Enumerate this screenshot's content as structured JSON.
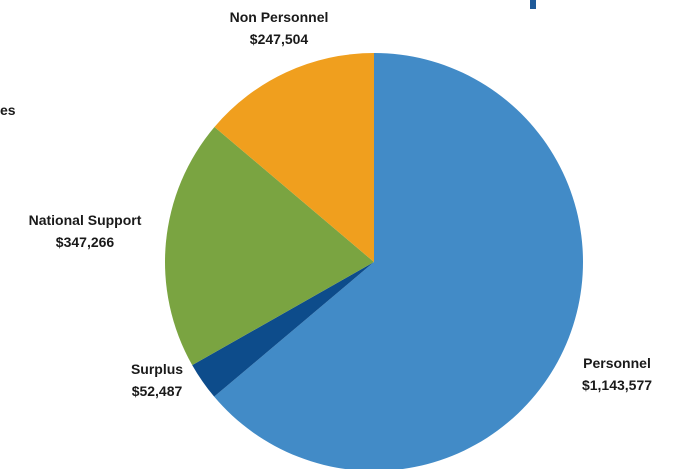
{
  "cropped_fragments": {
    "left_text": "es"
  },
  "colors": {
    "personnel": "#428bc7",
    "surplus": "#0d4c8b",
    "national_support": "#7aa441",
    "non_personnel": "#f09f1e",
    "corner_bar": "#1f5a99"
  },
  "chart_data": {
    "type": "pie",
    "title": "",
    "start_angle_deg": 0,
    "direction": "clockwise",
    "slices": [
      {
        "name": "Personnel",
        "value": 1143577,
        "value_label": "$1,143,577",
        "color": "#428bc7"
      },
      {
        "name": "Surplus",
        "value": 52487,
        "value_label": "$52,487",
        "color": "#0d4c8b"
      },
      {
        "name": "National Support",
        "value": 347266,
        "value_label": "$347,266",
        "color": "#7aa441"
      },
      {
        "name": "Non Personnel",
        "value": 247504,
        "value_label": "$247,504",
        "color": "#f09f1e"
      }
    ]
  }
}
